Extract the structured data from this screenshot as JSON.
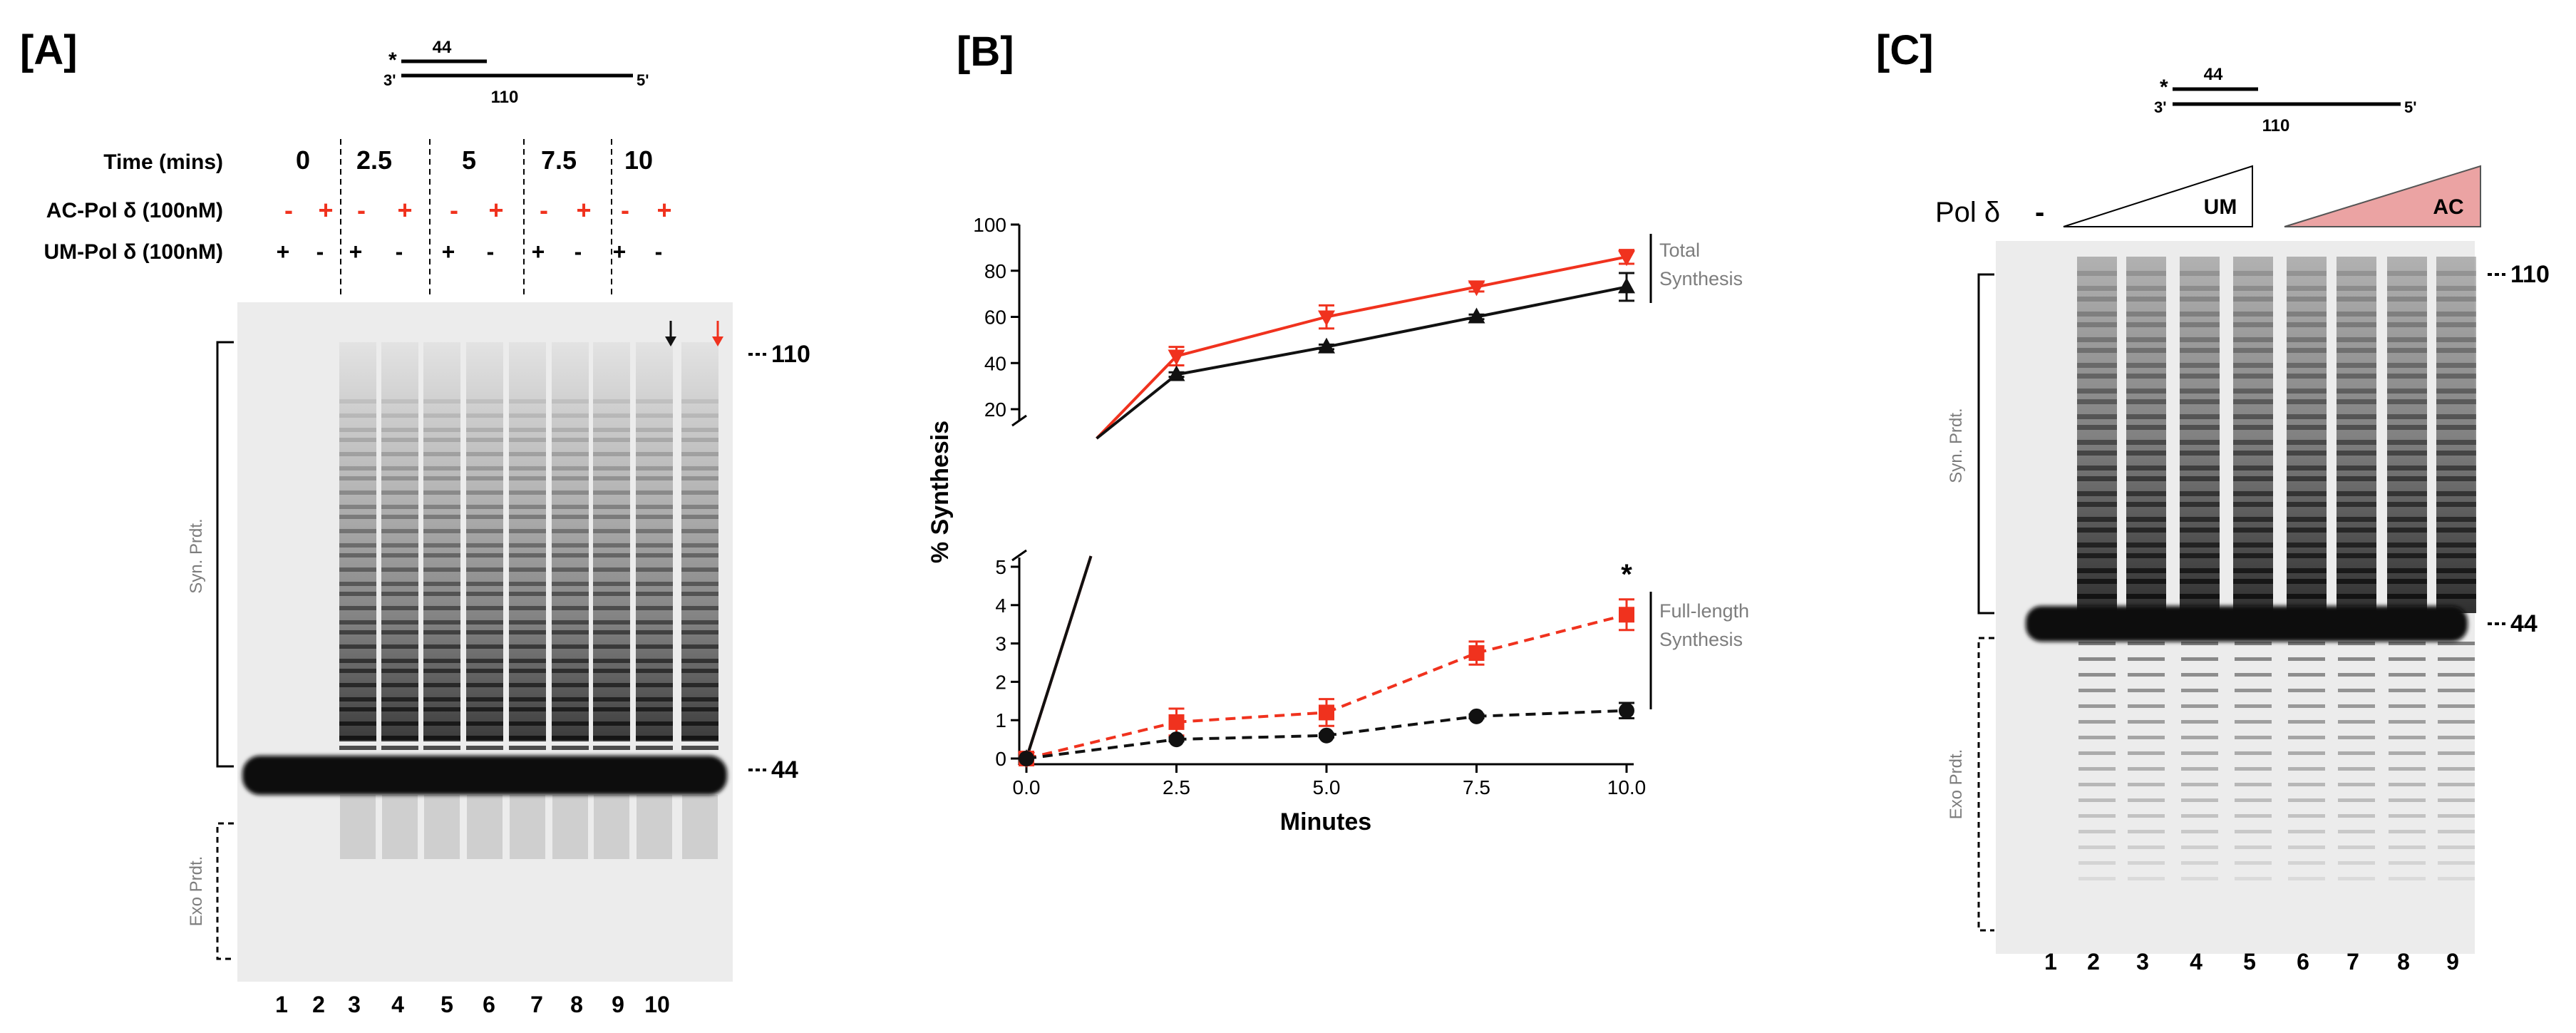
{
  "panels": {
    "a": {
      "label": "[A]",
      "schematic": {
        "star": "*",
        "primer_len": "44",
        "left_end": "3'",
        "right_end": "5'",
        "template_len": "110"
      },
      "row_labels": {
        "time": "Time (mins)",
        "ac": "AC-Pol δ (100nM)",
        "um": "UM-Pol δ (100nM)"
      },
      "times": [
        "0",
        "2.5",
        "5",
        "7.5",
        "10"
      ],
      "ac_signs": [
        "-",
        "+",
        "-",
        "+",
        "-",
        "+",
        "-",
        "+",
        "-",
        "+"
      ],
      "um_signs": [
        "+",
        "-",
        "+",
        "-",
        "+",
        "-",
        "+",
        "-",
        "+",
        "-"
      ],
      "size_markers": [
        "110",
        "44"
      ],
      "bracket_labels": {
        "syn": "Syn. Prdt.",
        "exo": "Exo Prdt."
      },
      "lanes": [
        "1",
        "2",
        "3",
        "4",
        "5",
        "6",
        "7",
        "8",
        "9",
        "10"
      ]
    },
    "b": {
      "label": "[B]"
    },
    "c": {
      "label": "[C]",
      "schematic": {
        "star": "*",
        "primer_len": "44",
        "left_end": "3'",
        "right_end": "5'",
        "template_len": "110"
      },
      "pol_label": "Pol δ",
      "minus": "-",
      "um_label": "UM",
      "ac_label": "AC",
      "size_markers": [
        "110",
        "44"
      ],
      "bracket_labels": {
        "syn": "Syn. Prdt.",
        "exo": "Exo Prdt."
      },
      "lanes": [
        "1",
        "2",
        "3",
        "4",
        "5",
        "6",
        "7",
        "8",
        "9"
      ]
    }
  },
  "colors": {
    "ac": "#f0321e",
    "um": "#111111",
    "ac_wedge": "#eba3a3",
    "gray_text": "#7d7d7d"
  },
  "chart_data": {
    "type": "line",
    "title": "",
    "xlabel": "Minutes",
    "ylabel": "% Synthesis",
    "x": [
      0,
      2.5,
      5,
      7.5,
      10
    ],
    "x_ticks": [
      "0.0",
      "2.5",
      "5.0",
      "7.5",
      "10.0"
    ],
    "broken_y_axis": {
      "upper": {
        "range": [
          20,
          100
        ],
        "ticks": [
          "20",
          "40",
          "60",
          "80",
          "100"
        ]
      },
      "lower": {
        "range": [
          0,
          5
        ],
        "ticks": [
          "0",
          "1",
          "2",
          "3",
          "4",
          "5"
        ]
      }
    },
    "series": [
      {
        "name": "Total Synthesis AC",
        "axis": "upper",
        "color": "#f0321e",
        "marker": "triangle-down",
        "dashed": false,
        "values": [
          0,
          43,
          60,
          73,
          86
        ],
        "err": [
          0,
          4,
          5,
          2,
          3
        ]
      },
      {
        "name": "Total Synthesis UM",
        "axis": "upper",
        "color": "#111111",
        "marker": "triangle-up",
        "dashed": false,
        "values": [
          0,
          35,
          47,
          60,
          73
        ],
        "err": [
          0,
          1,
          1,
          1,
          6
        ]
      },
      {
        "name": "Full-length Synthesis AC",
        "axis": "lower",
        "color": "#f0321e",
        "marker": "square",
        "dashed": true,
        "values": [
          0,
          0.95,
          1.2,
          2.75,
          3.75
        ],
        "err": [
          0,
          0.35,
          0.35,
          0.3,
          0.4
        ]
      },
      {
        "name": "Full-length Synthesis UM",
        "axis": "lower",
        "color": "#111111",
        "marker": "circle",
        "dashed": true,
        "values": [
          0,
          0.5,
          0.6,
          1.1,
          1.25
        ],
        "err": [
          0,
          0.05,
          0.05,
          0.05,
          0.2
        ]
      }
    ],
    "annotations": [
      {
        "text": "Total",
        "text2": "Synthesis",
        "group": "upper"
      },
      {
        "text": "Full-length",
        "text2": "Synthesis",
        "group": "lower"
      }
    ],
    "significance_mark": "*"
  }
}
